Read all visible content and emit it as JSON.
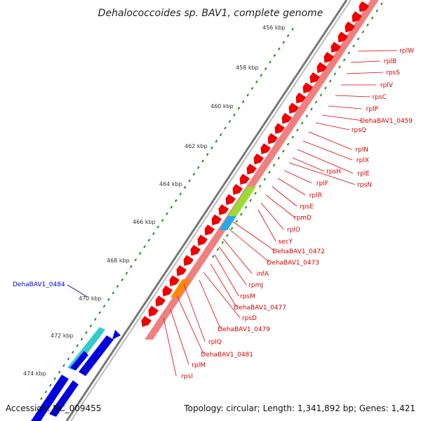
{
  "title": "Dehalococcoides sp. BAV1, complete genome",
  "footer": {
    "accession": "Accession: NC_009455",
    "topology": "Topology: circular; Length: 1,341,892 bp; Genes: 1,421"
  },
  "ticks": [
    "456 kbp",
    "458 kbp",
    "460 kbp",
    "462 kbp",
    "464 kbp",
    "466 kbp",
    "468 kbp",
    "470 kbp",
    "472 kbp",
    "474 kbp"
  ],
  "gene_labels_right": [
    "rplW",
    "rplB",
    "rpsS",
    "rplV",
    "rpsC",
    "rplP",
    "DehaBAV1_0459",
    "rpsQ",
    "rplN",
    "rplX",
    "rplE",
    "rpsH",
    "rpsN",
    "rplF",
    "rplR",
    "rpsE",
    "rpmD",
    "rplO",
    "secY",
    "DehaBAV1_0472",
    "DehaBAV1_0473",
    "infA",
    "rpmJ",
    "rpsM",
    "DehaBAV1_0477",
    "rpsD",
    "DehaBAV1_0479",
    "rplQ",
    "DehaBAV1_0481",
    "rplM",
    "rpsI"
  ],
  "gene_label_left": "DehaBAV1_0484",
  "colors": {
    "forward_cds": "#ee0000",
    "feature_track": "#f08080",
    "feature_green": "#99dd33",
    "feature_cyan": "#22aaee",
    "feature_orange": "#ff8800",
    "reverse_cds": "#0000dd",
    "teal_feature": "#33cccc",
    "tick_green": "#228822",
    "backbone": "#888888"
  }
}
